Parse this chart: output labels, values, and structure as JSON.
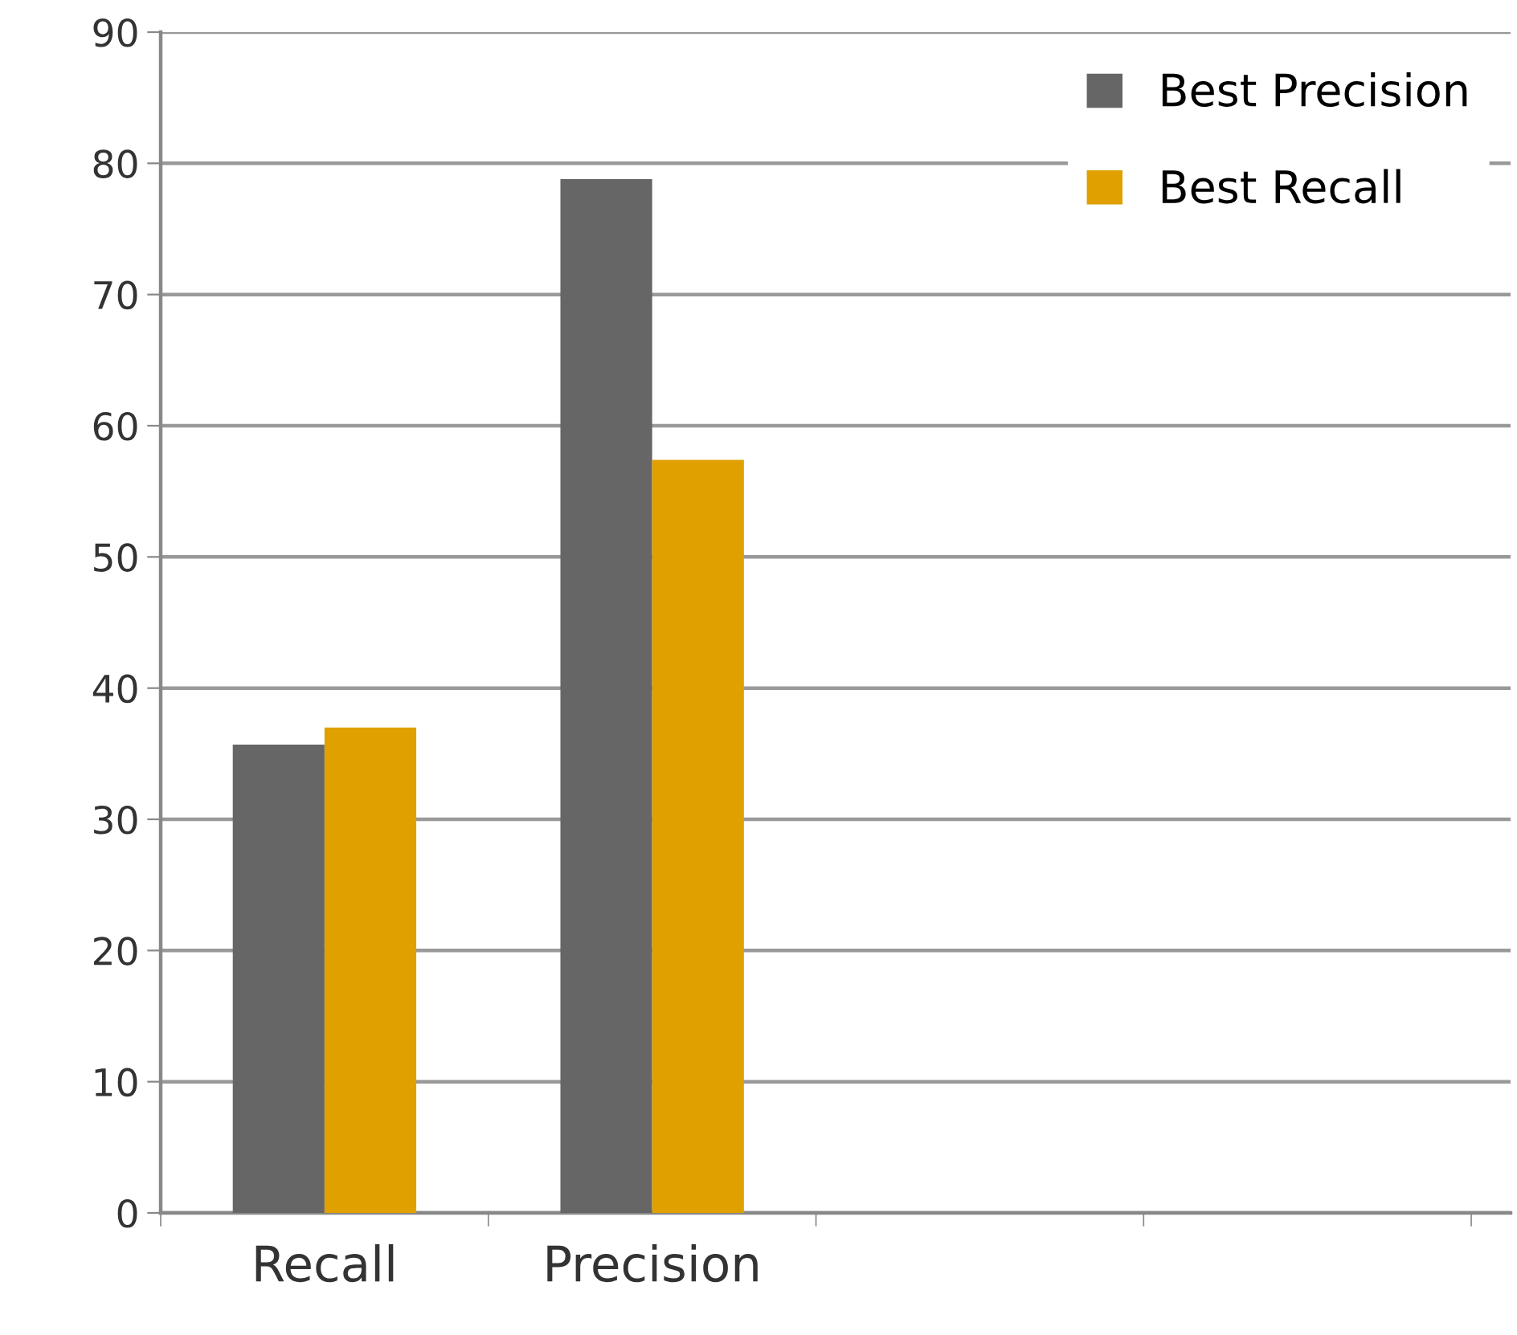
{
  "chart_data": {
    "type": "bar",
    "categories": [
      "Recall",
      "Precision",
      null,
      null
    ],
    "series": [
      {
        "name": "Best Precision",
        "color": "#666666",
        "values": [
          35.7,
          78.8,
          null,
          null
        ]
      },
      {
        "name": "Best Recall",
        "color": "#e0a000",
        "values": [
          37.0,
          57.4,
          null,
          null
        ]
      }
    ],
    "ylim": [
      0,
      90
    ],
    "yticks": [
      0,
      10,
      20,
      30,
      40,
      50,
      60,
      70,
      80,
      90
    ],
    "grid": "y",
    "legend": "top right"
  }
}
